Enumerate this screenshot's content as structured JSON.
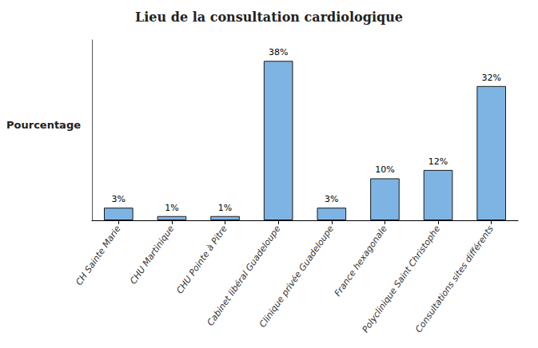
{
  "chart_data": {
    "type": "bar",
    "title": "Lieu de la consultation cardiologique",
    "ylabel": "Pourcentage",
    "categories": [
      "CH Sainte Marie",
      "CHU Martinique",
      "CHU Pointe à Pitre",
      "Cabinet libéral Guadeloupe",
      "Clinique privée Guadeloupe",
      "France hexagonale",
      "Polyclinique Saint Christophe",
      "Consultations sites différents"
    ],
    "values": [
      3,
      1,
      1,
      38,
      3,
      10,
      12,
      32
    ],
    "value_labels": [
      "3%",
      "1%",
      "1%",
      "38%",
      "3%",
      "10%",
      "12%",
      "32%"
    ],
    "data_labels": true,
    "color": "#7EB4E3",
    "ylim": [
      0,
      43
    ],
    "yticks": [],
    "tick_labels": "x",
    "grid": false
  }
}
